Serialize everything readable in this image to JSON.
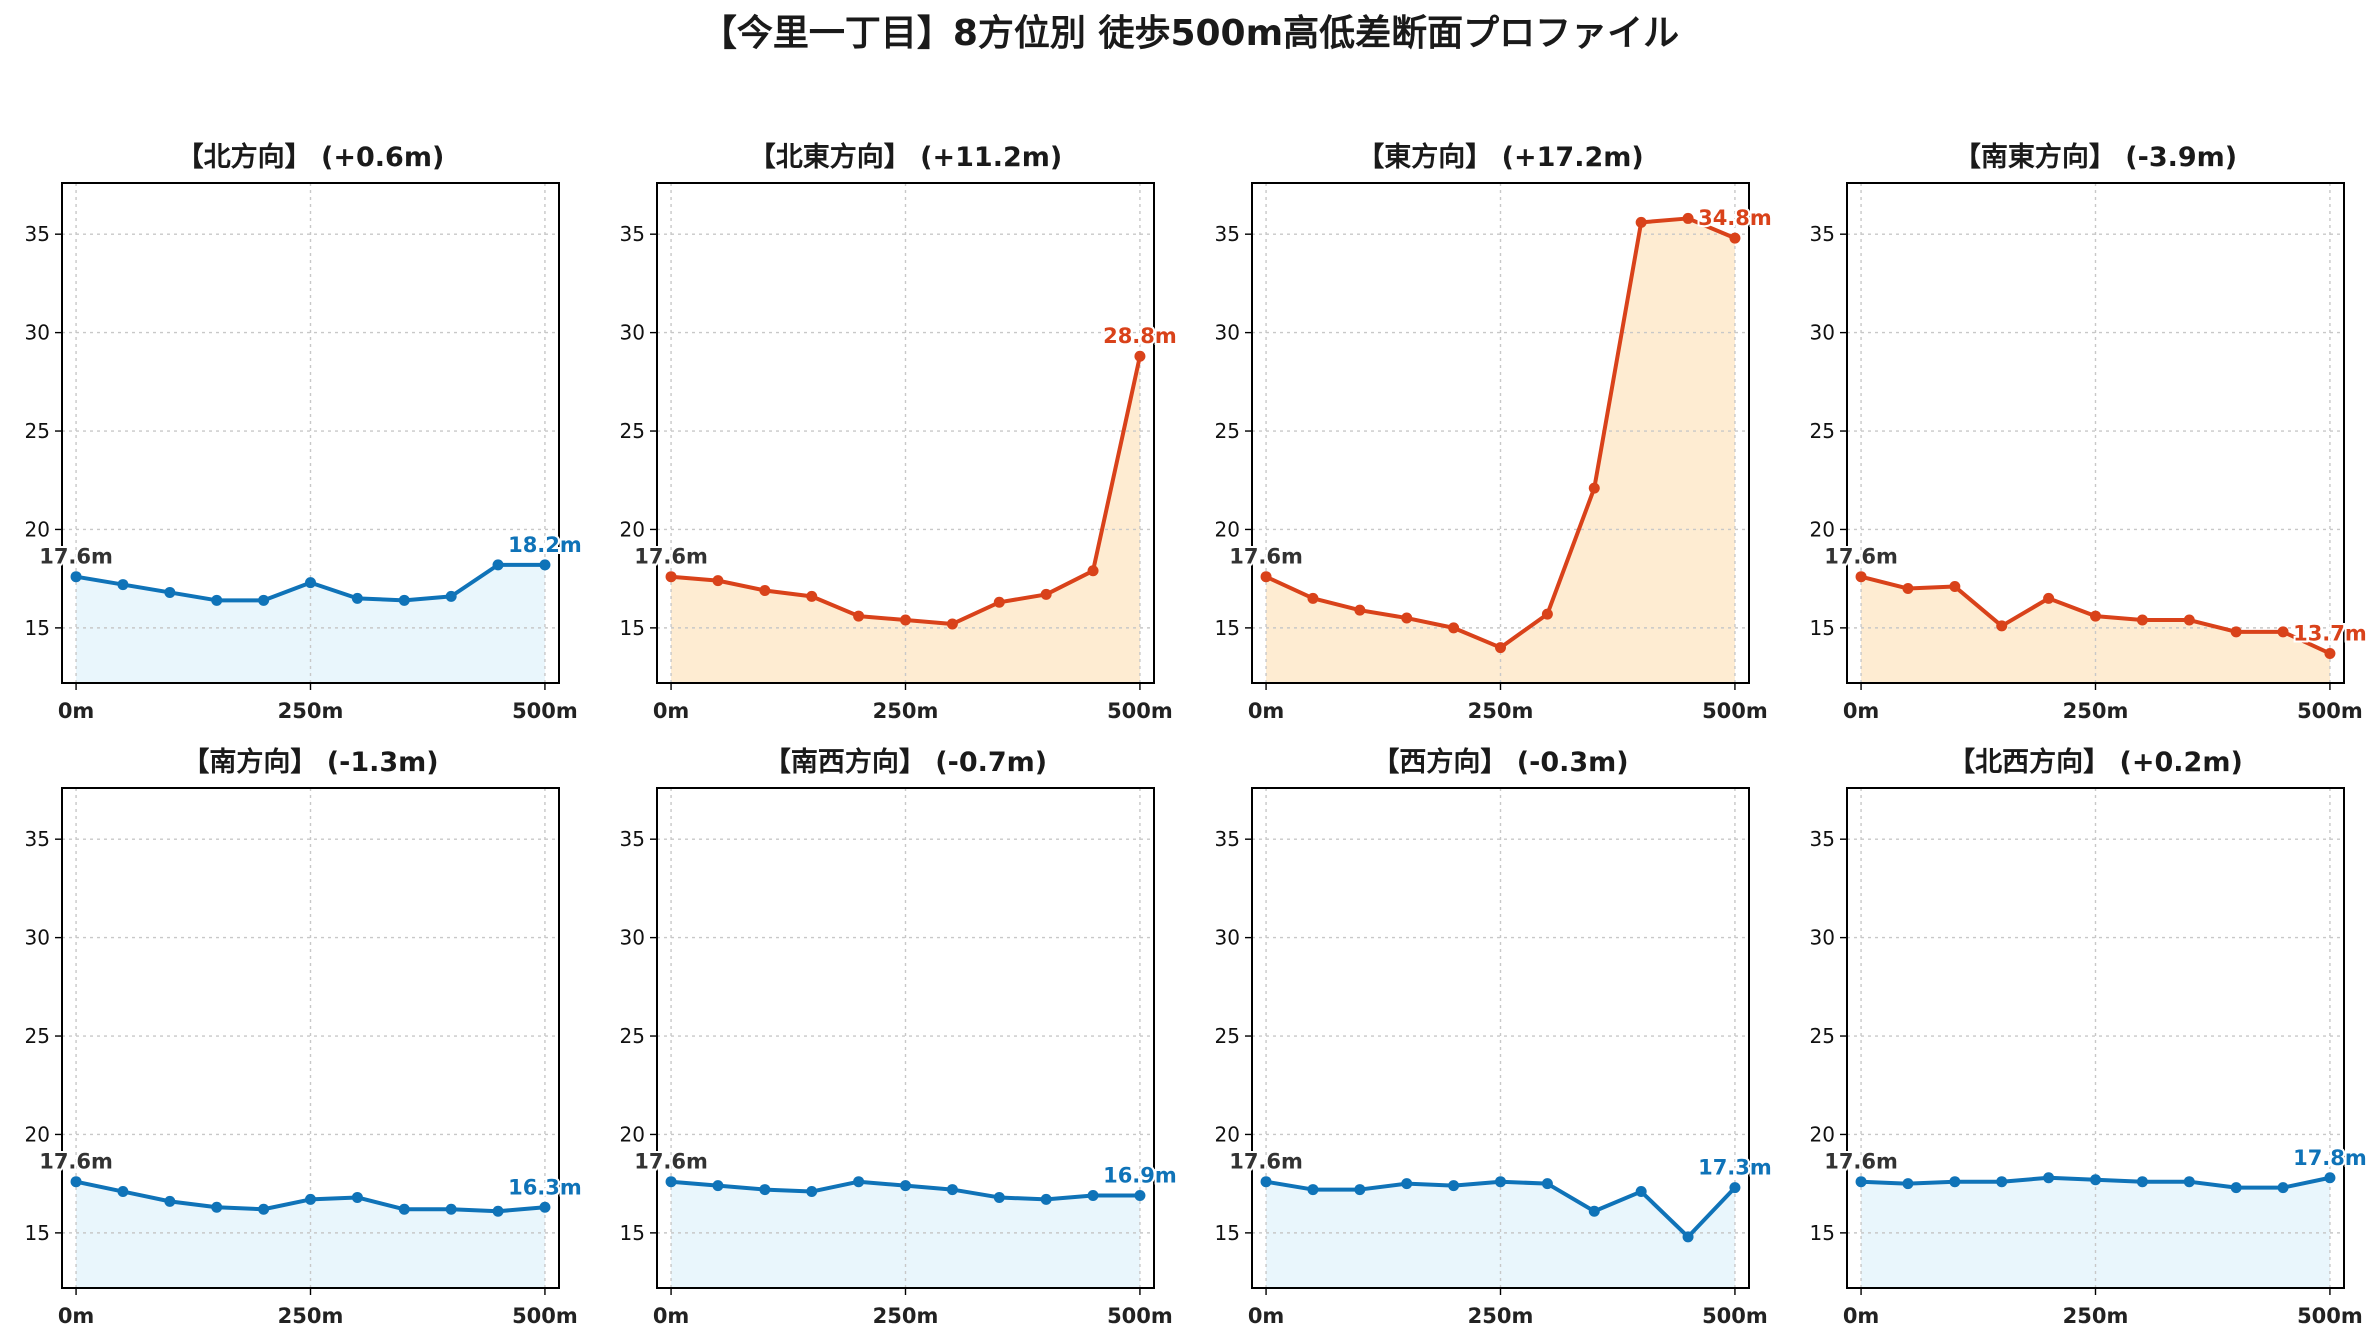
{
  "title": "【今里一丁目】8方位別 徒歩500m高低差断面プロファイル",
  "colors": {
    "rise_line": "#d9421a",
    "rise_fill": "#feecd2",
    "flat_line": "#0f73b8",
    "flat_fill": "#e9f6fc",
    "start_label": "#333333",
    "grid": "#c8c8c8"
  },
  "chart_data": [
    {
      "type": "area",
      "title": "【北方向】 (+0.6m)",
      "xlabel": "",
      "ylabel": "",
      "x": [
        0,
        50,
        100,
        150,
        200,
        250,
        300,
        350,
        400,
        450,
        500
      ],
      "series": [
        {
          "values": [
            17.6,
            17.2,
            16.8,
            16.4,
            16.4,
            17.3,
            16.5,
            16.4,
            16.6,
            18.2,
            18.2
          ]
        }
      ],
      "xticks": [
        "0m",
        "250m",
        "500m"
      ],
      "yticks": [
        "15",
        "20",
        "25",
        "30",
        "35"
      ],
      "ylim": [
        12.2,
        37.6
      ],
      "xlim": [
        -15,
        515
      ],
      "grid": true,
      "trend": "flat",
      "start_label": "17.6m",
      "end_label": "18.2m"
    },
    {
      "type": "area",
      "title": "【北東方向】 (+11.2m)",
      "xlabel": "",
      "ylabel": "",
      "x": [
        0,
        50,
        100,
        150,
        200,
        250,
        300,
        350,
        400,
        450,
        500
      ],
      "series": [
        {
          "values": [
            17.6,
            17.4,
            16.9,
            16.6,
            15.6,
            15.4,
            15.2,
            16.3,
            16.7,
            17.9,
            28.8
          ]
        }
      ],
      "xticks": [
        "0m",
        "250m",
        "500m"
      ],
      "yticks": [
        "15",
        "20",
        "25",
        "30",
        "35"
      ],
      "ylim": [
        12.2,
        37.6
      ],
      "xlim": [
        -15,
        515
      ],
      "grid": true,
      "trend": "rise",
      "start_label": "17.6m",
      "end_label": "28.8m"
    },
    {
      "type": "area",
      "title": "【東方向】 (+17.2m)",
      "xlabel": "",
      "ylabel": "",
      "x": [
        0,
        50,
        100,
        150,
        200,
        250,
        300,
        350,
        400,
        450,
        500
      ],
      "series": [
        {
          "values": [
            17.6,
            16.5,
            15.9,
            15.5,
            15.0,
            14.0,
            15.7,
            22.1,
            35.6,
            35.8,
            34.8
          ]
        }
      ],
      "xticks": [
        "0m",
        "250m",
        "500m"
      ],
      "yticks": [
        "15",
        "20",
        "25",
        "30",
        "35"
      ],
      "ylim": [
        12.2,
        37.6
      ],
      "xlim": [
        -15,
        515
      ],
      "grid": true,
      "trend": "rise",
      "start_label": "17.6m",
      "end_label": "34.8m"
    },
    {
      "type": "area",
      "title": "【南東方向】 (-3.9m)",
      "xlabel": "",
      "ylabel": "",
      "x": [
        0,
        50,
        100,
        150,
        200,
        250,
        300,
        350,
        400,
        450,
        500
      ],
      "series": [
        {
          "values": [
            17.6,
            17.0,
            17.1,
            15.1,
            16.5,
            15.6,
            15.4,
            15.4,
            14.8,
            14.8,
            13.7
          ]
        }
      ],
      "xticks": [
        "0m",
        "250m",
        "500m"
      ],
      "yticks": [
        "15",
        "20",
        "25",
        "30",
        "35"
      ],
      "ylim": [
        12.2,
        37.6
      ],
      "xlim": [
        -15,
        515
      ],
      "grid": true,
      "trend": "rise",
      "start_label": "17.6m",
      "end_label": "13.7m"
    },
    {
      "type": "area",
      "title": "【南方向】 (-1.3m)",
      "xlabel": "",
      "ylabel": "",
      "x": [
        0,
        50,
        100,
        150,
        200,
        250,
        300,
        350,
        400,
        450,
        500
      ],
      "series": [
        {
          "values": [
            17.6,
            17.1,
            16.6,
            16.3,
            16.2,
            16.7,
            16.8,
            16.2,
            16.2,
            16.1,
            16.3
          ]
        }
      ],
      "xticks": [
        "0m",
        "250m",
        "500m"
      ],
      "yticks": [
        "15",
        "20",
        "25",
        "30",
        "35"
      ],
      "ylim": [
        12.2,
        37.6
      ],
      "xlim": [
        -15,
        515
      ],
      "grid": true,
      "trend": "flat",
      "start_label": "17.6m",
      "end_label": "16.3m"
    },
    {
      "type": "area",
      "title": "【南西方向】 (-0.7m)",
      "xlabel": "",
      "ylabel": "",
      "x": [
        0,
        50,
        100,
        150,
        200,
        250,
        300,
        350,
        400,
        450,
        500
      ],
      "series": [
        {
          "values": [
            17.6,
            17.4,
            17.2,
            17.1,
            17.6,
            17.4,
            17.2,
            16.8,
            16.7,
            16.9,
            16.9
          ]
        }
      ],
      "xticks": [
        "0m",
        "250m",
        "500m"
      ],
      "yticks": [
        "15",
        "20",
        "25",
        "30",
        "35"
      ],
      "ylim": [
        12.2,
        37.6
      ],
      "xlim": [
        -15,
        515
      ],
      "grid": true,
      "trend": "flat",
      "start_label": "17.6m",
      "end_label": "16.9m"
    },
    {
      "type": "area",
      "title": "【西方向】 (-0.3m)",
      "xlabel": "",
      "ylabel": "",
      "x": [
        0,
        50,
        100,
        150,
        200,
        250,
        300,
        350,
        400,
        450,
        500
      ],
      "series": [
        {
          "values": [
            17.6,
            17.2,
            17.2,
            17.5,
            17.4,
            17.6,
            17.5,
            16.1,
            17.1,
            14.8,
            17.3
          ]
        }
      ],
      "xticks": [
        "0m",
        "250m",
        "500m"
      ],
      "yticks": [
        "15",
        "20",
        "25",
        "30",
        "35"
      ],
      "ylim": [
        12.2,
        37.6
      ],
      "xlim": [
        -15,
        515
      ],
      "grid": true,
      "trend": "flat",
      "start_label": "17.6m",
      "end_label": "17.3m"
    },
    {
      "type": "area",
      "title": "【北西方向】 (+0.2m)",
      "xlabel": "",
      "ylabel": "",
      "x": [
        0,
        50,
        100,
        150,
        200,
        250,
        300,
        350,
        400,
        450,
        500
      ],
      "series": [
        {
          "values": [
            17.6,
            17.5,
            17.6,
            17.6,
            17.8,
            17.7,
            17.6,
            17.6,
            17.3,
            17.3,
            17.8
          ]
        }
      ],
      "xticks": [
        "0m",
        "250m",
        "500m"
      ],
      "yticks": [
        "15",
        "20",
        "25",
        "30",
        "35"
      ],
      "ylim": [
        12.2,
        37.6
      ],
      "xlim": [
        -15,
        515
      ],
      "grid": true,
      "trend": "flat",
      "start_label": "17.6m",
      "end_label": "17.8m"
    }
  ]
}
